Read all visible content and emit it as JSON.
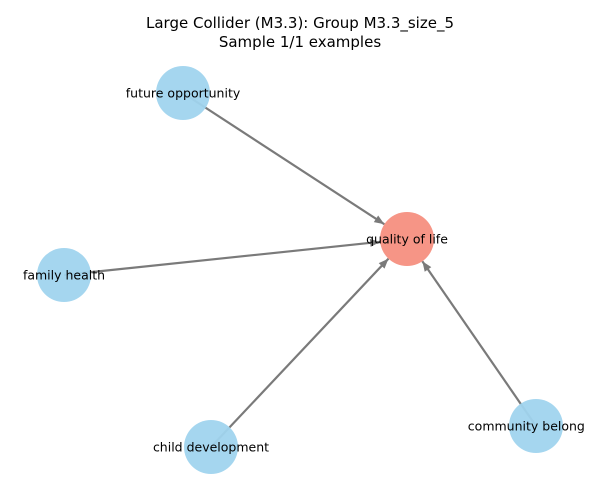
{
  "title": {
    "line1": "Large Collider (M3.3): Group M3.3_size_5",
    "line2": "Sample 1/1 examples"
  },
  "colors": {
    "cause_node": "#a0d4ee",
    "effect_node": "#f68f80",
    "edge": "#7a7a7a"
  },
  "nodes": [
    {
      "id": "future",
      "label": "future opportunity",
      "role": "cause"
    },
    {
      "id": "health",
      "label": "family health",
      "role": "cause"
    },
    {
      "id": "child",
      "label": "child development",
      "role": "cause"
    },
    {
      "id": "community",
      "label": "community belonging",
      "role": "cause"
    },
    {
      "id": "quality",
      "label": "quality of life",
      "role": "effect"
    }
  ],
  "edges": [
    {
      "from": "future",
      "to": "quality"
    },
    {
      "from": "health",
      "to": "quality"
    },
    {
      "from": "child",
      "to": "quality"
    },
    {
      "from": "community",
      "to": "quality"
    }
  ]
}
